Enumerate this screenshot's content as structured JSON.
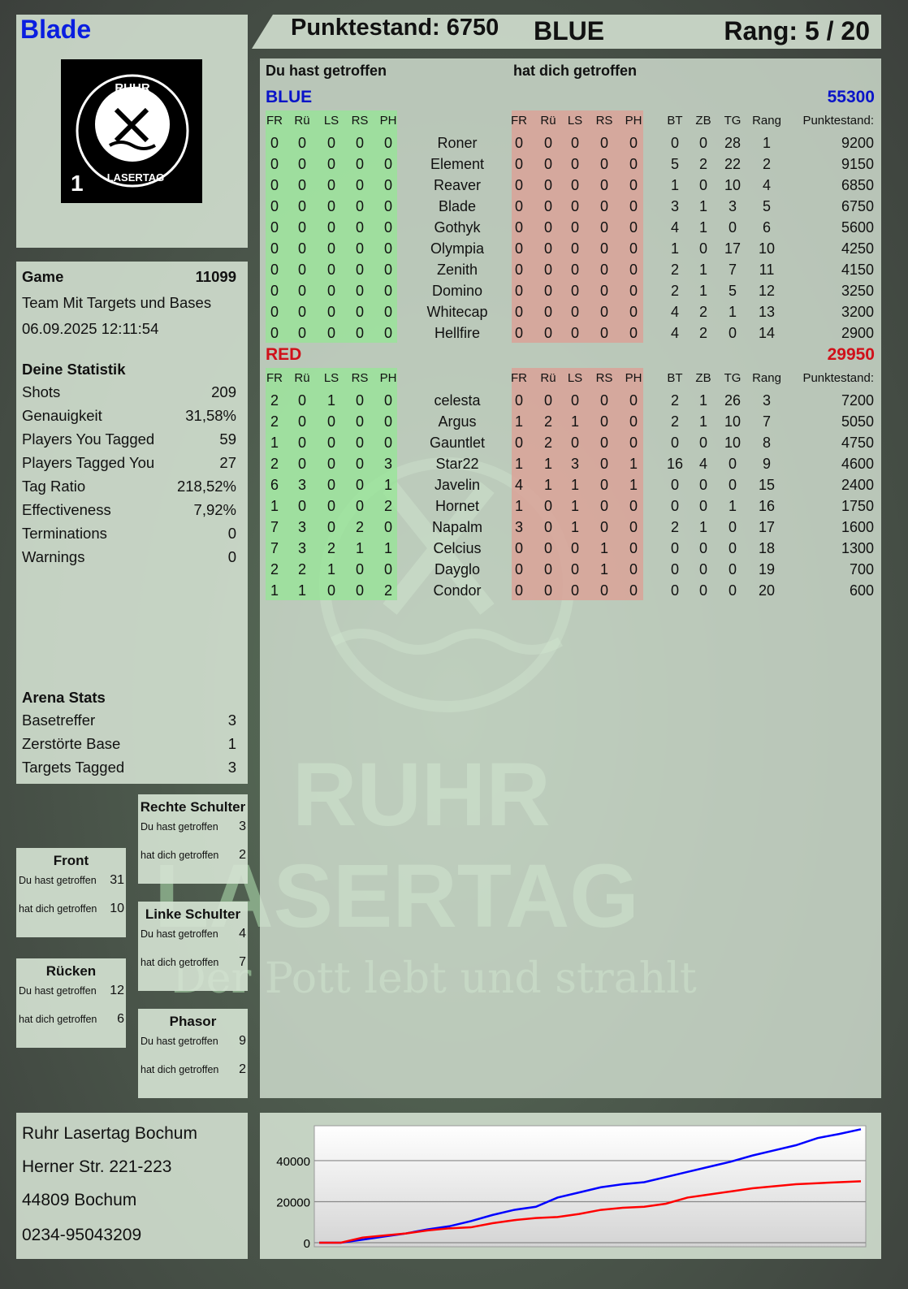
{
  "player": {
    "name": "Blade",
    "logo_text": "RUHR LASERTAG 1"
  },
  "header": {
    "score": "Punktestand: 6750",
    "team": "BLUE",
    "rank": "Rang: 5 / 20"
  },
  "game": {
    "label": "Game",
    "id": "11099",
    "mode": "Team Mit Targets und Bases",
    "datetime": "06.09.2025 12:11:54"
  },
  "stats": {
    "title": "Deine Statistik",
    "items": [
      {
        "label": "Shots",
        "value": "209"
      },
      {
        "label": "Genauigkeit",
        "value": "31,58%"
      },
      {
        "label": "Players You Tagged",
        "value": "59"
      },
      {
        "label": "Players Tagged You",
        "value": "27"
      },
      {
        "label": "Tag Ratio",
        "value": "218,52%"
      },
      {
        "label": "Effectiveness",
        "value": "7,92%"
      },
      {
        "label": "Terminations",
        "value": "0"
      },
      {
        "label": "Warnings",
        "value": "0"
      }
    ]
  },
  "arena": {
    "title": "Arena Stats",
    "items": [
      {
        "label": "Basetreffer",
        "value": "3"
      },
      {
        "label": "Zerstörte Base",
        "value": "1"
      },
      {
        "label": "Targets Tagged",
        "value": "3"
      }
    ]
  },
  "zones": [
    {
      "title": "Rechte Schulter",
      "hit_label": "Du hast getroffen",
      "hit": "3",
      "got_label": "hat dich getroffen",
      "got": "2"
    },
    {
      "title": "Front",
      "hit_label": "Du hast getroffen",
      "hit": "31",
      "got_label": "hat dich getroffen",
      "got": "10"
    },
    {
      "title": "Linke Schulter",
      "hit_label": "Du hast getroffen",
      "hit": "4",
      "got_label": "hat dich getroffen",
      "got": "7"
    },
    {
      "title": "Rücken",
      "hit_label": "Du hast getroffen",
      "hit": "12",
      "got_label": "hat dich getroffen",
      "got": "6"
    },
    {
      "title": "Phasor",
      "hit_label": "Du hast getroffen",
      "hit": "9",
      "got_label": "hat dich getroffen",
      "got": "2"
    }
  ],
  "address": [
    "Ruhr Lasertag Bochum",
    "Herner Str. 221-223",
    "44809 Bochum",
    "0234-95043209"
  ],
  "table": {
    "you_hit": "Du hast getroffen",
    "hit_you": "hat dich getroffen",
    "columns": [
      "FR",
      "Rü",
      "LS",
      "RS",
      "PH",
      "FR",
      "Rü",
      "LS",
      "RS",
      "PH",
      "BT",
      "ZB",
      "TG",
      "Rang",
      "Punktestand:"
    ],
    "teams": [
      {
        "name": "BLUE",
        "score": "55300",
        "color": "#0a14c8",
        "rows": [
          [
            "0",
            "0",
            "0",
            "0",
            "0",
            "Roner",
            "0",
            "0",
            "0",
            "0",
            "0",
            "0",
            "0",
            "28",
            "1",
            "9200"
          ],
          [
            "0",
            "0",
            "0",
            "0",
            "0",
            "Element",
            "0",
            "0",
            "0",
            "0",
            "0",
            "5",
            "2",
            "22",
            "2",
            "9150"
          ],
          [
            "0",
            "0",
            "0",
            "0",
            "0",
            "Reaver",
            "0",
            "0",
            "0",
            "0",
            "0",
            "1",
            "0",
            "10",
            "4",
            "6850"
          ],
          [
            "0",
            "0",
            "0",
            "0",
            "0",
            "Blade",
            "0",
            "0",
            "0",
            "0",
            "0",
            "3",
            "1",
            "3",
            "5",
            "6750"
          ],
          [
            "0",
            "0",
            "0",
            "0",
            "0",
            "Gothyk",
            "0",
            "0",
            "0",
            "0",
            "0",
            "4",
            "1",
            "0",
            "6",
            "5600"
          ],
          [
            "0",
            "0",
            "0",
            "0",
            "0",
            "Olympia",
            "0",
            "0",
            "0",
            "0",
            "0",
            "1",
            "0",
            "17",
            "10",
            "4250"
          ],
          [
            "0",
            "0",
            "0",
            "0",
            "0",
            "Zenith",
            "0",
            "0",
            "0",
            "0",
            "0",
            "2",
            "1",
            "7",
            "11",
            "4150"
          ],
          [
            "0",
            "0",
            "0",
            "0",
            "0",
            "Domino",
            "0",
            "0",
            "0",
            "0",
            "0",
            "2",
            "1",
            "5",
            "12",
            "3250"
          ],
          [
            "0",
            "0",
            "0",
            "0",
            "0",
            "Whitecap",
            "0",
            "0",
            "0",
            "0",
            "0",
            "4",
            "2",
            "1",
            "13",
            "3200"
          ],
          [
            "0",
            "0",
            "0",
            "0",
            "0",
            "Hellfire",
            "0",
            "0",
            "0",
            "0",
            "0",
            "4",
            "2",
            "0",
            "14",
            "2900"
          ]
        ]
      },
      {
        "name": "RED",
        "score": "29950",
        "color": "#d0101a",
        "rows": [
          [
            "2",
            "0",
            "1",
            "0",
            "0",
            "celesta",
            "0",
            "0",
            "0",
            "0",
            "0",
            "2",
            "1",
            "26",
            "3",
            "7200"
          ],
          [
            "2",
            "0",
            "0",
            "0",
            "0",
            "Argus",
            "1",
            "2",
            "1",
            "0",
            "0",
            "2",
            "1",
            "10",
            "7",
            "5050"
          ],
          [
            "1",
            "0",
            "0",
            "0",
            "0",
            "Gauntlet",
            "0",
            "2",
            "0",
            "0",
            "0",
            "0",
            "0",
            "10",
            "8",
            "4750"
          ],
          [
            "2",
            "0",
            "0",
            "0",
            "3",
            "Star22",
            "1",
            "1",
            "3",
            "0",
            "1",
            "16",
            "4",
            "0",
            "9",
            "4600"
          ],
          [
            "6",
            "3",
            "0",
            "0",
            "1",
            "Javelin",
            "4",
            "1",
            "1",
            "0",
            "1",
            "0",
            "0",
            "0",
            "15",
            "2400"
          ],
          [
            "1",
            "0",
            "0",
            "0",
            "2",
            "Hornet",
            "1",
            "0",
            "1",
            "0",
            "0",
            "0",
            "0",
            "1",
            "16",
            "1750"
          ],
          [
            "7",
            "3",
            "0",
            "2",
            "0",
            "Napalm",
            "3",
            "0",
            "1",
            "0",
            "0",
            "2",
            "1",
            "0",
            "17",
            "1600"
          ],
          [
            "7",
            "3",
            "2",
            "1",
            "1",
            "Celcius",
            "0",
            "0",
            "0",
            "1",
            "0",
            "0",
            "0",
            "0",
            "18",
            "1300"
          ],
          [
            "2",
            "2",
            "1",
            "0",
            "0",
            "Dayglo",
            "0",
            "0",
            "0",
            "1",
            "0",
            "0",
            "0",
            "0",
            "19",
            "700"
          ],
          [
            "1",
            "1",
            "0",
            "0",
            "2",
            "Condor",
            "0",
            "0",
            "0",
            "0",
            "0",
            "0",
            "0",
            "0",
            "20",
            "600"
          ]
        ]
      }
    ]
  },
  "watermark": {
    "line1": "RUHR",
    "line2": "LASERTAG",
    "slogan": "Der Pott lebt und strahlt"
  },
  "chart_data": {
    "type": "line",
    "ylim": [
      0,
      57000
    ],
    "yticks": [
      "0",
      "20000",
      "40000"
    ],
    "grid": true,
    "series": [
      {
        "color": "#0000ff",
        "values": [
          0,
          0,
          1500,
          3000,
          4500,
          6500,
          8000,
          10500,
          13500,
          16000,
          17500,
          22000,
          24500,
          27000,
          28500,
          29500,
          32000,
          34500,
          37000,
          39500,
          42500,
          45000,
          47500,
          51000,
          53000,
          55300
        ]
      },
      {
        "color": "#ff0000",
        "values": [
          0,
          0,
          2500,
          3500,
          4500,
          6000,
          7000,
          7500,
          9500,
          11000,
          12000,
          12500,
          14000,
          16000,
          17000,
          17500,
          19000,
          22000,
          23500,
          25000,
          26500,
          27500,
          28500,
          29000,
          29500,
          29950
        ]
      }
    ]
  }
}
